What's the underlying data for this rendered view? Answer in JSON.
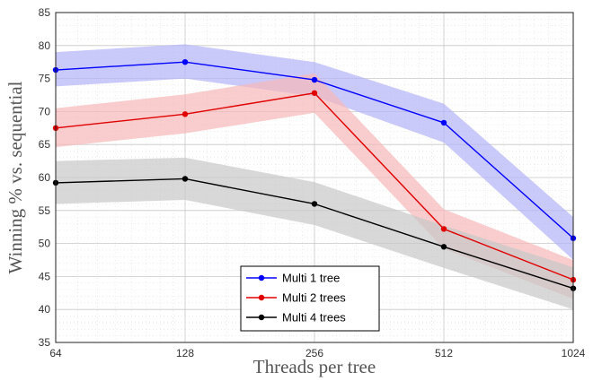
{
  "chart_data": {
    "type": "line",
    "title": "",
    "xlabel": "Threads per tree",
    "ylabel": "Winning % vs. sequential",
    "x_scale": "log2",
    "x": [
      64,
      128,
      256,
      512,
      1024
    ],
    "x_ticks": [
      "64",
      "128",
      "256",
      "512",
      "1024"
    ],
    "ylim": [
      35,
      85
    ],
    "y_ticks": [
      "35",
      "40",
      "45",
      "50",
      "55",
      "60",
      "65",
      "70",
      "75",
      "80",
      "85"
    ],
    "grid": true,
    "legend_position": "bottom-center",
    "series": [
      {
        "name": "Multi 1 tree",
        "color": "#0000ff",
        "band_color": "#b4b4f8",
        "values": [
          76.3,
          77.5,
          74.8,
          68.3,
          50.8
        ],
        "lower": [
          73.8,
          75.0,
          72.3,
          65.3,
          47.5
        ],
        "upper": [
          79.0,
          80.2,
          77.5,
          71.2,
          54.0
        ]
      },
      {
        "name": "Multi 2 trees",
        "color": "#e00000",
        "band_color": "#f6b8b8",
        "values": [
          67.5,
          69.6,
          72.8,
          52.2,
          44.5
        ],
        "lower": [
          64.6,
          66.7,
          69.8,
          49.2,
          41.6
        ],
        "upper": [
          70.5,
          72.6,
          75.8,
          55.2,
          47.5
        ]
      },
      {
        "name": "Multi 4 trees",
        "color": "#000000",
        "band_color": "#c8c8c8",
        "values": [
          59.2,
          59.8,
          56.0,
          49.5,
          43.2
        ],
        "lower": [
          56.0,
          56.6,
          52.8,
          46.3,
          40.0
        ],
        "upper": [
          62.5,
          63.0,
          59.3,
          52.7,
          46.4
        ]
      }
    ]
  }
}
